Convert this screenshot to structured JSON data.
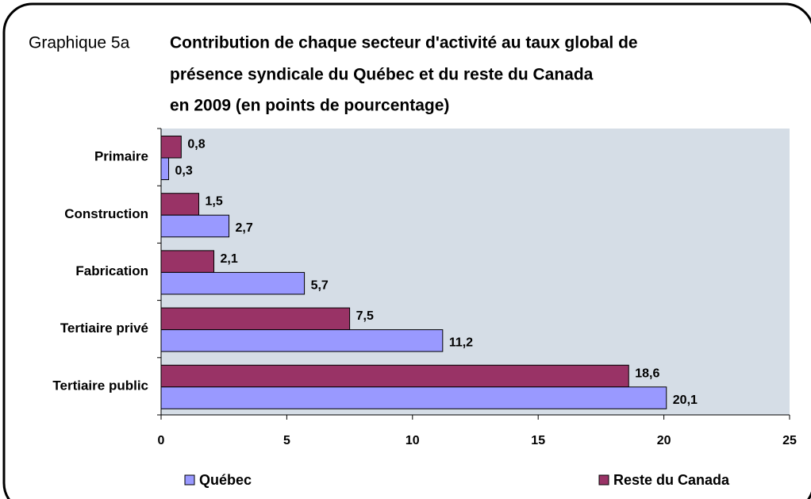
{
  "chart_data": {
    "type": "barh",
    "label": "Graphique 5a",
    "title": [
      "Contribution de chaque secteur d'activité au taux global de",
      "présence syndicale du Québec et du reste du Canada",
      "en 2009 (en points de pourcentage)"
    ],
    "categories": [
      "Primaire",
      "Construction",
      "Fabrication",
      "Tertiaire privé",
      "Tertiaire public"
    ],
    "series": [
      {
        "name": "Québec",
        "color": "#9999ff",
        "values": [
          0.3,
          2.7,
          5.7,
          11.2,
          20.1
        ],
        "value_labels": [
          "0,3",
          "2,7",
          "5,7",
          "11,2",
          "20,1"
        ]
      },
      {
        "name": "Reste du Canada",
        "color": "#993366",
        "values": [
          0.8,
          1.5,
          2.1,
          7.5,
          18.6
        ],
        "value_labels": [
          "0,8",
          "1,5",
          "2,1",
          "7,5",
          "18,6"
        ]
      }
    ],
    "xlim": [
      0,
      25
    ],
    "xticks": [
      0,
      5,
      10,
      15,
      20,
      25
    ],
    "legend": "bottom"
  }
}
